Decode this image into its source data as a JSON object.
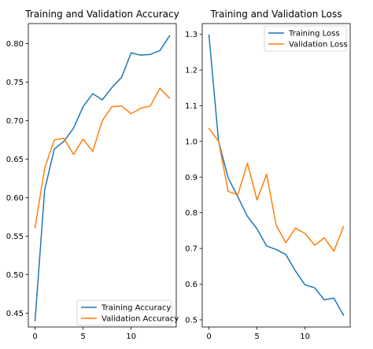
{
  "chart_data": [
    {
      "type": "line",
      "title": "Training and Validation Accuracy",
      "xlabel": "",
      "ylabel": "",
      "xlim": [
        -0.7,
        14.7
      ],
      "ylim": [
        0.432,
        0.826
      ],
      "xticks": [
        0,
        5,
        10
      ],
      "yticks": [
        0.45,
        0.5,
        0.55,
        0.6,
        0.65,
        0.7,
        0.75,
        0.8
      ],
      "ytick_labels": [
        "0.45",
        "0.50",
        "0.55",
        "0.60",
        "0.65",
        "0.70",
        "0.75",
        "0.80"
      ],
      "grid": false,
      "legend_position": "lower-right",
      "x": [
        0,
        1,
        2,
        3,
        4,
        5,
        6,
        7,
        8,
        9,
        10,
        11,
        12,
        13,
        14
      ],
      "series": [
        {
          "name": "Training Accuracy",
          "color": "#1f77b4",
          "values": [
            0.44,
            0.61,
            0.663,
            0.673,
            0.69,
            0.718,
            0.735,
            0.727,
            0.743,
            0.756,
            0.788,
            0.785,
            0.786,
            0.791,
            0.81
          ]
        },
        {
          "name": "Validation Accuracy",
          "color": "#ff7f0e",
          "values": [
            0.561,
            0.638,
            0.675,
            0.677,
            0.656,
            0.676,
            0.66,
            0.7,
            0.718,
            0.719,
            0.709,
            0.716,
            0.719,
            0.742,
            0.729
          ]
        }
      ]
    },
    {
      "type": "line",
      "title": "Training and Validation Loss",
      "xlabel": "",
      "ylabel": "",
      "xlim": [
        -0.7,
        14.7
      ],
      "ylim": [
        0.48,
        1.33
      ],
      "xticks": [
        0,
        5,
        10
      ],
      "yticks": [
        0.5,
        0.6,
        0.7,
        0.8,
        0.9,
        1.0,
        1.1,
        1.2,
        1.3
      ],
      "ytick_labels": [
        "0.5",
        "0.6",
        "0.7",
        "0.8",
        "0.9",
        "1.0",
        "1.1",
        "1.2",
        "1.3"
      ],
      "grid": false,
      "legend_position": "upper-right",
      "x": [
        0,
        1,
        2,
        3,
        4,
        5,
        6,
        7,
        8,
        9,
        10,
        11,
        12,
        13,
        14
      ],
      "series": [
        {
          "name": "Training Loss",
          "color": "#1f77b4",
          "values": [
            1.298,
            1.0,
            0.898,
            0.845,
            0.79,
            0.755,
            0.707,
            0.697,
            0.683,
            0.637,
            0.598,
            0.59,
            0.556,
            0.561,
            0.513
          ]
        },
        {
          "name": "Validation Loss",
          "color": "#ff7f0e",
          "values": [
            1.036,
            1.0,
            0.86,
            0.85,
            0.939,
            0.836,
            0.908,
            0.765,
            0.716,
            0.757,
            0.742,
            0.709,
            0.73,
            0.692,
            0.761
          ]
        }
      ]
    }
  ]
}
